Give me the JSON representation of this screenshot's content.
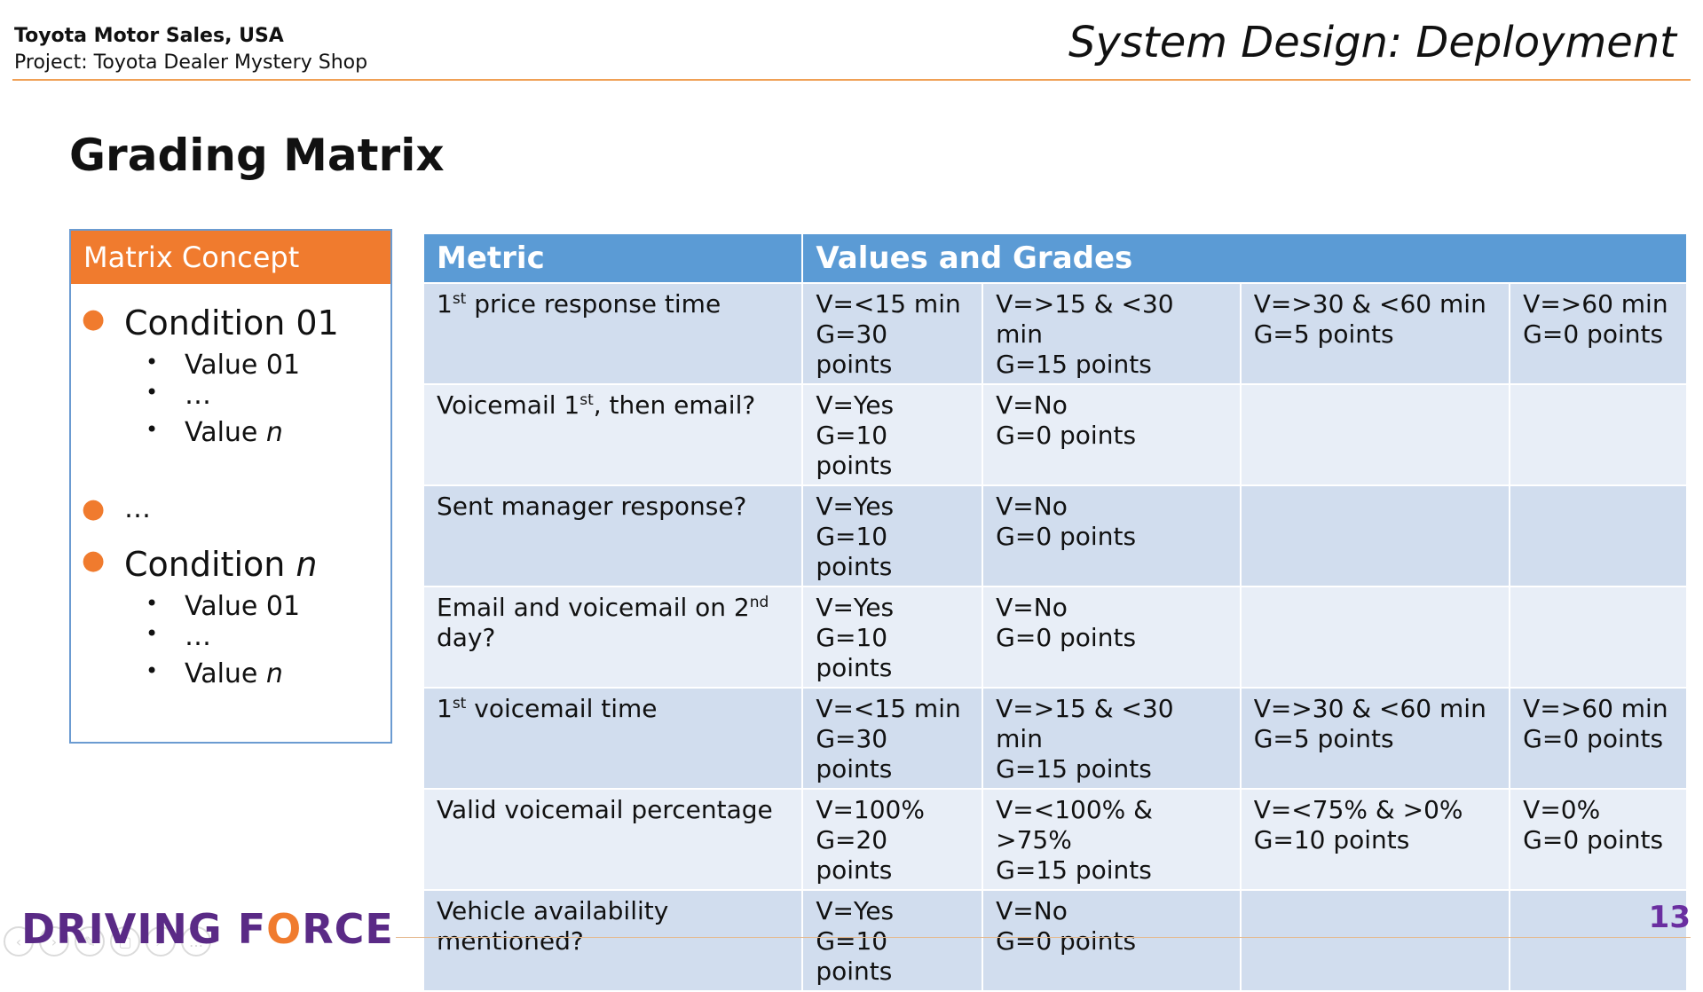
{
  "header": {
    "org": "Toyota Motor Sales, USA",
    "project": "Project: Toyota Dealer Mystery Shop",
    "title": "System Design: Deployment"
  },
  "section_title": "Grading Matrix",
  "concept": {
    "heading": "Matrix Concept",
    "condition_first": "Condition 01",
    "condition_first_values": [
      "Value 01",
      "…",
      "Value "
    ],
    "ellipsis": "…",
    "condition_last_prefix": "Condition ",
    "italic_n": "n",
    "condition_last_values": [
      "Value 01",
      "…",
      "Value "
    ]
  },
  "table": {
    "headers": [
      "Metric",
      "Values and Grades"
    ],
    "rows": [
      {
        "metric_pre": "1",
        "metric_sup": "st",
        "metric_post": " price response time",
        "cells": [
          [
            "V=<15 min",
            "G=30 points"
          ],
          [
            "V=>15 & <30 min",
            "G=15 points"
          ],
          [
            "V=>30 & <60 min",
            "G=5 points"
          ],
          [
            "V=>60 min",
            "G=0 points"
          ]
        ]
      },
      {
        "metric_pre": "Voicemail 1",
        "metric_sup": "st",
        "metric_post": ", then email?",
        "cells": [
          [
            "V=Yes",
            "G=10 points"
          ],
          [
            "V=No",
            "G=0 points"
          ],
          [
            "",
            ""
          ],
          [
            "",
            ""
          ]
        ]
      },
      {
        "metric_pre": "Sent manager response?",
        "metric_sup": "",
        "metric_post": "",
        "cells": [
          [
            "V=Yes",
            "G=10 points"
          ],
          [
            "V=No",
            "G=0 points"
          ],
          [
            "",
            ""
          ],
          [
            "",
            ""
          ]
        ]
      },
      {
        "metric_pre": "Email and voicemail on 2",
        "metric_sup": "nd",
        "metric_post": " day?",
        "cells": [
          [
            "V=Yes",
            "G=10 points"
          ],
          [
            "V=No",
            "G=0 points"
          ],
          [
            "",
            ""
          ],
          [
            "",
            ""
          ]
        ]
      },
      {
        "metric_pre": "1",
        "metric_sup": "st",
        "metric_post": " voicemail time",
        "cells": [
          [
            "V=<15 min",
            "G=30 points"
          ],
          [
            "V=>15 & <30 min",
            "G=15 points"
          ],
          [
            "V=>30 & <60 min",
            "G=5 points"
          ],
          [
            "V=>60 min",
            "G=0 points"
          ]
        ]
      },
      {
        "metric_pre": "Valid voicemail percentage",
        "metric_sup": "",
        "metric_post": "",
        "cells": [
          [
            "V=100%",
            "G=20 points"
          ],
          [
            "V=<100% & >75%",
            "G=15 points"
          ],
          [
            "V=<75% & >0%",
            "G=10 points"
          ],
          [
            "V=0%",
            "G=0 points"
          ]
        ]
      },
      {
        "metric_pre": "Vehicle availability mentioned?",
        "metric_sup": "",
        "metric_post": "",
        "cells": [
          [
            "V=Yes",
            "G=10 points"
          ],
          [
            "V=No",
            "G=0 points"
          ],
          [
            "",
            ""
          ],
          [
            "",
            ""
          ]
        ]
      }
    ]
  },
  "footer": {
    "logo_part1": "DRIVING F",
    "logo_part2": "O",
    "logo_part3": "RCE",
    "page_number": "13"
  },
  "colors": {
    "accent_orange": "#f07b2e",
    "header_blue": "#5b9bd5",
    "row_dark": "#d1ddee",
    "row_light": "#e8eef7",
    "logo_purple": "#5a2a86"
  }
}
